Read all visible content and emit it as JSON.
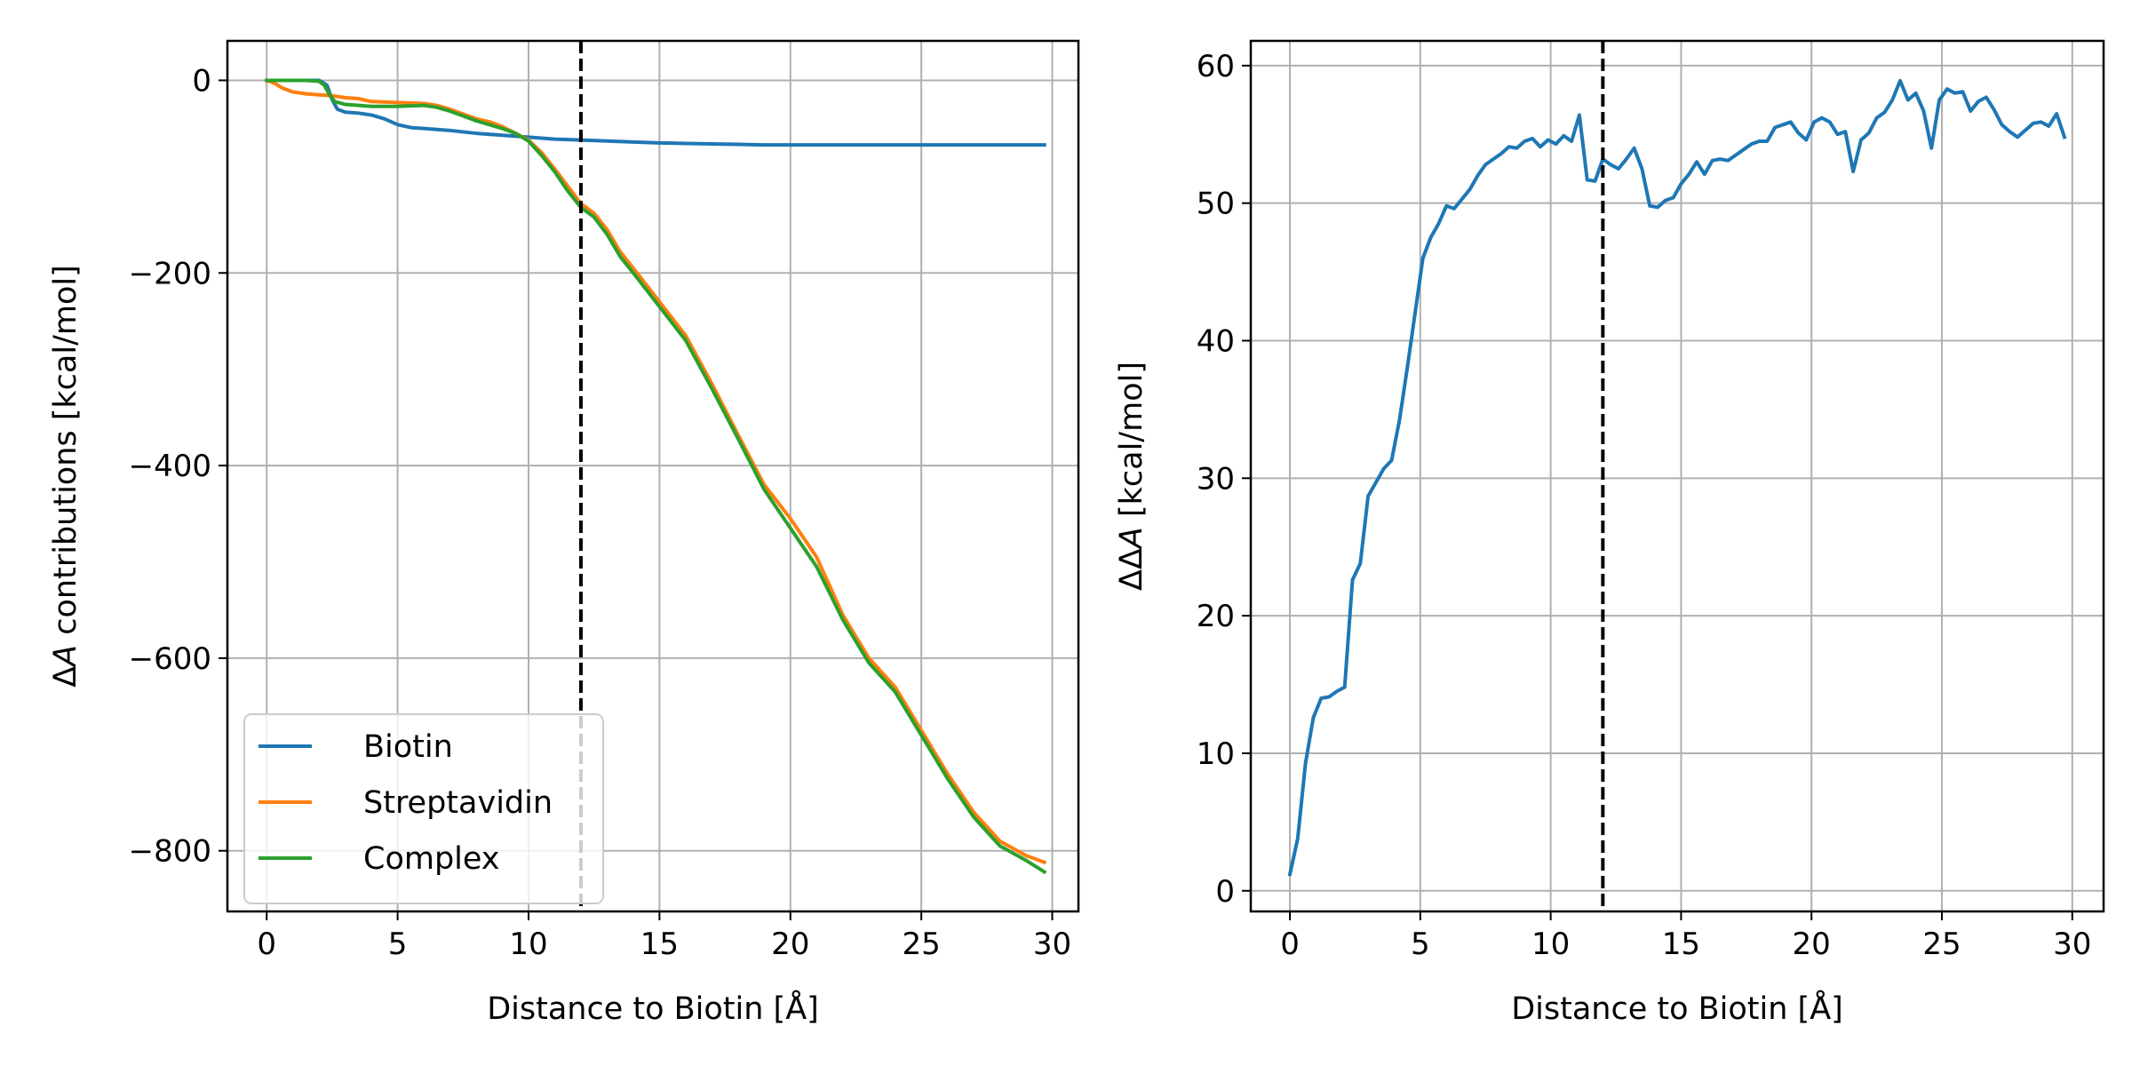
{
  "chart_data": [
    {
      "type": "line",
      "title": "",
      "xlabel": "Distance to Biotin [Å]",
      "ylabel_delta": "Δ",
      "ylabel_var": "A",
      "ylabel_rest": " contributions [kcal/mol]",
      "xlim": [
        -1.5,
        31
      ],
      "ylim": [
        -863,
        41
      ],
      "xticks": [
        0,
        5,
        10,
        15,
        20,
        25,
        30
      ],
      "xtick_labels": [
        "0",
        "5",
        "10",
        "15",
        "20",
        "25",
        "30"
      ],
      "yticks": [
        0,
        -200,
        -400,
        -600,
        -800
      ],
      "ytick_labels": [
        "0",
        "−200",
        "−400",
        "−600",
        "−800"
      ],
      "grid": true,
      "legend_position": "lower-left",
      "vline": {
        "x": 12,
        "style": "dashed",
        "color": "#000000"
      },
      "series": [
        {
          "name": "Biotin",
          "color": "#1f77b4",
          "x": [
            0,
            0.5,
            1,
            1.5,
            2,
            2.3,
            2.5,
            2.7,
            3,
            3.5,
            4,
            4.5,
            5,
            5.5,
            6,
            7,
            8,
            9,
            10,
            11,
            12,
            13,
            14,
            15,
            16,
            17,
            18,
            19,
            20,
            21,
            22,
            23,
            24,
            25,
            26,
            27,
            28,
            29,
            29.7
          ],
          "y": [
            0,
            0,
            0,
            0,
            0,
            -5,
            -20,
            -30,
            -33,
            -34,
            -36,
            -40,
            -46,
            -49,
            -50,
            -52,
            -55,
            -57,
            -59,
            -61,
            -62,
            -63,
            -64,
            -65,
            -65.5,
            -66,
            -66.5,
            -67,
            -67,
            -67,
            -67,
            -67,
            -67,
            -67,
            -67,
            -67,
            -67,
            -67,
            -67
          ]
        },
        {
          "name": "Streptavidin",
          "color": "#ff7f0e",
          "x": [
            0,
            0.3,
            0.6,
            1,
            1.5,
            2,
            2.5,
            3,
            3.5,
            4,
            5,
            6,
            6.5,
            7,
            7.5,
            8,
            8.5,
            9,
            9.5,
            10,
            10.5,
            11,
            11.5,
            12,
            12.5,
            13,
            13.5,
            14,
            15,
            16,
            17,
            18,
            19,
            20,
            21,
            22,
            23,
            24,
            25,
            26,
            27,
            28,
            29,
            29.7
          ],
          "y": [
            0,
            -3,
            -8,
            -12,
            -14,
            -15,
            -16,
            -18,
            -19,
            -22,
            -23,
            -24,
            -26,
            -30,
            -35,
            -40,
            -43,
            -48,
            -55,
            -62,
            -75,
            -92,
            -110,
            -128,
            -138,
            -155,
            -178,
            -195,
            -230,
            -265,
            -315,
            -368,
            -420,
            -455,
            -495,
            -555,
            -600,
            -630,
            -675,
            -720,
            -760,
            -790,
            -805,
            -812
          ]
        },
        {
          "name": "Complex",
          "color": "#2ca02c",
          "x": [
            0,
            0.5,
            1,
            1.5,
            2,
            2.2,
            2.4,
            2.6,
            3,
            3.5,
            4,
            5,
            6,
            6.5,
            7,
            7.5,
            8,
            8.5,
            9,
            9.5,
            10,
            10.5,
            11,
            11.5,
            12,
            12.5,
            13,
            13.5,
            14,
            15,
            16,
            17,
            18,
            19,
            20,
            21,
            22,
            23,
            24,
            25,
            26,
            27,
            28,
            29,
            29.7
          ],
          "y": [
            0,
            0,
            0,
            0,
            -1,
            -5,
            -15,
            -22,
            -25,
            -26,
            -27,
            -27,
            -26,
            -28,
            -32,
            -37,
            -42,
            -46,
            -50,
            -55,
            -63,
            -78,
            -95,
            -115,
            -132,
            -142,
            -160,
            -183,
            -200,
            -235,
            -270,
            -320,
            -372,
            -425,
            -465,
            -505,
            -560,
            -605,
            -635,
            -680,
            -725,
            -765,
            -795,
            -810,
            -822
          ]
        }
      ]
    },
    {
      "type": "line",
      "title": "",
      "xlabel": "Distance to Biotin [Å]",
      "ylabel_delta": "ΔΔ",
      "ylabel_var": "A",
      "ylabel_rest": " [kcal/mol]",
      "xlim": [
        -1.5,
        31.2
      ],
      "ylim": [
        -1.5,
        61.8
      ],
      "xticks": [
        0,
        5,
        10,
        15,
        20,
        25,
        30
      ],
      "xtick_labels": [
        "0",
        "5",
        "10",
        "15",
        "20",
        "25",
        "30"
      ],
      "yticks": [
        0,
        10,
        20,
        30,
        40,
        50,
        60
      ],
      "ytick_labels": [
        "0",
        "10",
        "20",
        "30",
        "40",
        "50",
        "60"
      ],
      "grid": true,
      "vline": {
        "x": 12,
        "style": "dashed",
        "color": "#000000"
      },
      "series": [
        {
          "color": "#1f77b4",
          "x": [
            0,
            0.3,
            0.6,
            0.9,
            1.2,
            1.5,
            1.8,
            2.1,
            2.4,
            2.7,
            3.0,
            3.3,
            3.6,
            3.9,
            4.2,
            4.5,
            4.8,
            5.1,
            5.4,
            5.7,
            6.0,
            6.3,
            6.6,
            6.9,
            7.2,
            7.5,
            7.8,
            8.1,
            8.4,
            8.7,
            9.0,
            9.3,
            9.6,
            9.9,
            10.2,
            10.5,
            10.8,
            11.1,
            11.4,
            11.7,
            12.0,
            12.3,
            12.6,
            12.9,
            13.2,
            13.5,
            13.8,
            14.1,
            14.4,
            14.7,
            15.0,
            15.3,
            15.6,
            15.9,
            16.2,
            16.5,
            16.8,
            17.1,
            17.4,
            17.7,
            18.0,
            18.3,
            18.6,
            18.9,
            19.2,
            19.5,
            19.8,
            20.1,
            20.4,
            20.7,
            21.0,
            21.3,
            21.6,
            21.9,
            22.2,
            22.5,
            22.8,
            23.1,
            23.4,
            23.7,
            24.0,
            24.3,
            24.6,
            24.9,
            25.2,
            25.5,
            25.8,
            26.1,
            26.4,
            26.7,
            27.0,
            27.3,
            27.6,
            27.9,
            28.2,
            28.5,
            28.8,
            29.1,
            29.4,
            29.7
          ],
          "y": [
            1.2,
            3.8,
            9.3,
            12.6,
            14.0,
            14.1,
            14.5,
            14.8,
            22.6,
            23.8,
            28.7,
            29.7,
            30.7,
            31.3,
            34.2,
            38.0,
            42.0,
            46.0,
            47.5,
            48.5,
            49.8,
            49.6,
            50.3,
            51.0,
            52.0,
            52.8,
            53.2,
            53.6,
            54.1,
            54.0,
            54.5,
            54.7,
            54.1,
            54.6,
            54.3,
            54.9,
            54.5,
            56.4,
            51.7,
            51.6,
            53.2,
            52.8,
            52.5,
            53.2,
            54.0,
            52.5,
            49.8,
            49.7,
            50.2,
            50.4,
            51.4,
            52.1,
            53.0,
            52.1,
            53.1,
            53.2,
            53.1,
            53.5,
            53.9,
            54.3,
            54.5,
            54.5,
            55.5,
            55.7,
            55.9,
            55.1,
            54.6,
            55.9,
            56.2,
            55.9,
            55.0,
            55.2,
            52.3,
            54.6,
            55.1,
            56.2,
            56.6,
            57.5,
            58.9,
            57.5,
            58.0,
            56.7,
            54.0,
            57.5,
            58.3,
            58.0,
            58.1,
            56.7,
            57.4,
            57.7,
            56.8,
            55.7,
            55.2,
            54.8,
            55.3,
            55.8,
            55.9,
            55.6,
            56.5,
            54.8
          ]
        }
      ]
    }
  ]
}
